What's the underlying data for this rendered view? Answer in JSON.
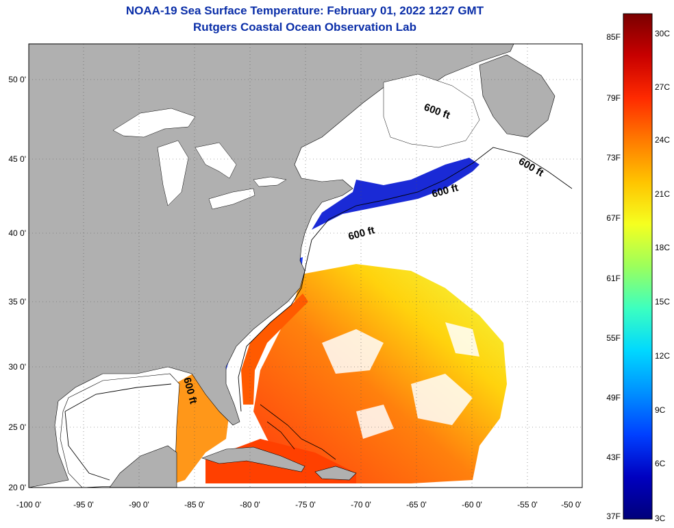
{
  "title": {
    "line1": "NOAA-19 Sea Surface Temperature:  February 01, 2022 1227 GMT",
    "line2": "Rutgers Coastal Ocean Observation Lab"
  },
  "map": {
    "lon_range": [
      -100,
      -50
    ],
    "lat_range": [
      20,
      52.5
    ],
    "lon_ticks": [
      "-100 0'",
      "-95 0'",
      "-90 0'",
      "-85 0'",
      "-80 0'",
      "-75 0'",
      "-70 0'",
      "-65 0'",
      "-60 0'",
      "-55 0'",
      "-50 0'"
    ],
    "lat_ticks": [
      "20 0'",
      "25 0'",
      "30 0'",
      "35 0'",
      "40 0'",
      "45 0'",
      "50 0'"
    ],
    "grid": "dotted",
    "land_color": "#b0b0b0",
    "no_data_color": "#ffffff",
    "contour_labels": [
      "600 ft",
      "600 ft",
      "600 ft",
      "600 ft",
      "600 ft"
    ]
  },
  "colorbar": {
    "fahrenheit_labels": [
      "85F",
      "79F",
      "73F",
      "67F",
      "61F",
      "55F",
      "49F",
      "43F",
      "37F"
    ],
    "celsius_labels": [
      "30C",
      "27C",
      "24C",
      "21C",
      "18C",
      "15C",
      "12C",
      "9C",
      "6C",
      "3C"
    ],
    "colors": [
      "#7a0000",
      "#c80000",
      "#ff2a00",
      "#ff7a00",
      "#ffc400",
      "#f5ff20",
      "#9cff5c",
      "#3cffc0",
      "#00d8ff",
      "#0090ff",
      "#0040ff",
      "#0000c0",
      "#00007a"
    ]
  }
}
